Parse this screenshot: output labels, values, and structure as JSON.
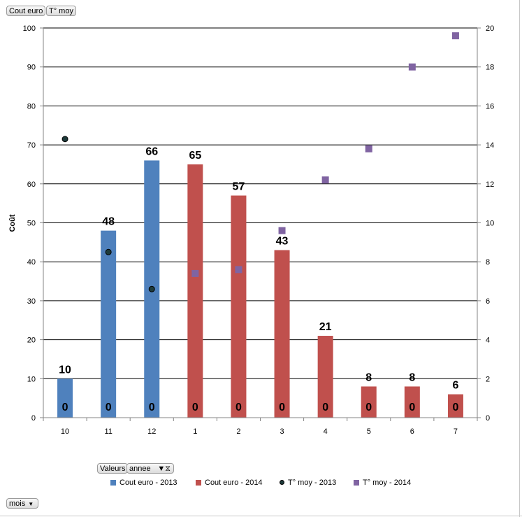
{
  "field_buttons": {
    "cout_euro": "Cout euro",
    "t_moy": "T° moy",
    "valeurs": "Valeurs",
    "annee": "annee",
    "mois": "mois"
  },
  "colors": {
    "cout_2013": "#4f81bd",
    "cout_2014": "#c0504d",
    "tmoy_2013": "#1d3a3a",
    "tmoy_2014": "#8064a2"
  },
  "chart_data": {
    "type": "bar",
    "categories": [
      "10",
      "11",
      "12",
      "1",
      "2",
      "3",
      "4",
      "5",
      "6",
      "7"
    ],
    "ylabel": "Coût",
    "ylim": [
      0,
      100
    ],
    "y_ticks": [
      0,
      10,
      20,
      30,
      40,
      50,
      60,
      70,
      80,
      90,
      100
    ],
    "y2lim": [
      0,
      20
    ],
    "y2_ticks": [
      0,
      2,
      4,
      6,
      8,
      10,
      12,
      14,
      16,
      18,
      20
    ],
    "grid": true,
    "legend_position": "bottom",
    "bar_series": [
      {
        "name": "Cout euro - 2013",
        "color": "#4f81bd",
        "start_index": 0,
        "values": [
          10,
          48,
          66
        ],
        "labels": [
          "10",
          "48",
          "66"
        ]
      },
      {
        "name": "Cout euro - 2014",
        "color": "#c0504d",
        "start_index": 3,
        "values": [
          65,
          57,
          43,
          21,
          8,
          8,
          6
        ],
        "labels": [
          "65",
          "57",
          "43",
          "21",
          "8",
          "8",
          "6"
        ]
      }
    ],
    "base_labels": [
      "0",
      "0",
      "0",
      "0",
      "0",
      "0",
      "0",
      "0",
      "0",
      "0"
    ],
    "point_series": [
      {
        "name": "T° moy - 2013",
        "marker": "circle",
        "color": "#1d3a3a",
        "axis": "secondary",
        "start_index": 0,
        "values": [
          14.3,
          8.5,
          6.6
        ]
      },
      {
        "name": "T° moy - 2014",
        "marker": "square",
        "color": "#8064a2",
        "axis": "secondary",
        "start_index": 3,
        "values": [
          7.4,
          7.6,
          9.6,
          12.2,
          13.8,
          18.0,
          19.6
        ]
      }
    ]
  }
}
